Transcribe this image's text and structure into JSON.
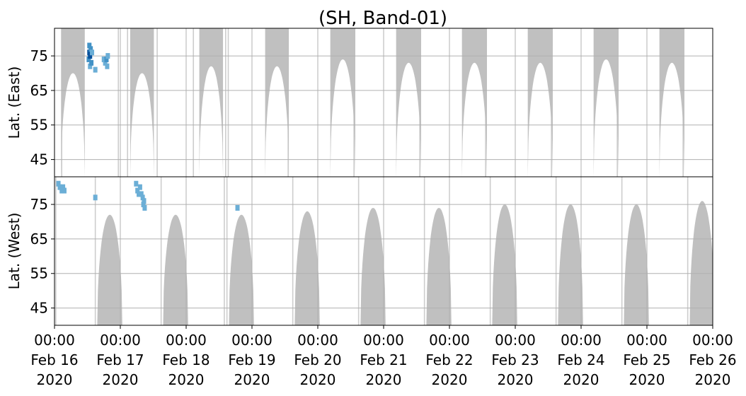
{
  "chart_data": {
    "type": "heatmap",
    "title": "(SH, Band-01)",
    "xlabel": "",
    "x_range": [
      "2020-02-16 00:00",
      "2020-02-26 00:00"
    ],
    "x_ticks": [
      {
        "time": "00:00",
        "date": "Feb 16",
        "year": "2020"
      },
      {
        "time": "00:00",
        "date": "Feb 17",
        "year": "2020"
      },
      {
        "time": "00:00",
        "date": "Feb 18",
        "year": "2020"
      },
      {
        "time": "00:00",
        "date": "Feb 19",
        "year": "2020"
      },
      {
        "time": "00:00",
        "date": "Feb 20",
        "year": "2020"
      },
      {
        "time": "00:00",
        "date": "Feb 21",
        "year": "2020"
      },
      {
        "time": "00:00",
        "date": "Feb 22",
        "year": "2020"
      },
      {
        "time": "00:00",
        "date": "Feb 23",
        "year": "2020"
      },
      {
        "time": "00:00",
        "date": "Feb 24",
        "year": "2020"
      },
      {
        "time": "00:00",
        "date": "Feb 25",
        "year": "2020"
      },
      {
        "time": "00:00",
        "date": "Feb 26",
        "year": "2020"
      }
    ],
    "grid": true,
    "colors": {
      "coverage": "#c0c0c0",
      "detection_light": "#6baed6",
      "detection_mid": "#4292c6",
      "detection_dark": "#08519c"
    },
    "panels": [
      {
        "name": "east",
        "ylabel": "Lat. (East)",
        "ylim": [
          40,
          83
        ],
        "yticks": [
          "45",
          "55",
          "65",
          "75"
        ],
        "coverage_lobes": [
          {
            "center_day": 0.28,
            "half_width_day": 0.18,
            "max_lat": 70,
            "edge": "top"
          },
          {
            "center_day": 1.33,
            "half_width_day": 0.18,
            "max_lat": 70,
            "edge": "top"
          },
          {
            "center_day": 2.38,
            "half_width_day": 0.18,
            "max_lat": 72,
            "edge": "top"
          },
          {
            "center_day": 3.38,
            "half_width_day": 0.18,
            "max_lat": 72,
            "edge": "top"
          },
          {
            "center_day": 4.38,
            "half_width_day": 0.19,
            "max_lat": 74,
            "edge": "top"
          },
          {
            "center_day": 5.38,
            "half_width_day": 0.19,
            "max_lat": 73,
            "edge": "top"
          },
          {
            "center_day": 6.38,
            "half_width_day": 0.19,
            "max_lat": 73,
            "edge": "top"
          },
          {
            "center_day": 7.38,
            "half_width_day": 0.19,
            "max_lat": 73,
            "edge": "top"
          },
          {
            "center_day": 8.38,
            "half_width_day": 0.19,
            "max_lat": 74,
            "edge": "top"
          },
          {
            "center_day": 9.38,
            "half_width_day": 0.19,
            "max_lat": 73,
            "edge": "top"
          }
        ],
        "coverage_streaks": [
          {
            "day": 0.97,
            "lat_min": 40,
            "lat_max": 83
          },
          {
            "day": 1.56,
            "lat_min": 40,
            "lat_max": 83
          },
          {
            "day": 2.6,
            "lat_min": 40,
            "lat_max": 83
          },
          {
            "day": 2.64,
            "lat_min": 40,
            "lat_max": 83
          },
          {
            "day": 3.55,
            "lat_min": 40,
            "lat_max": 83
          },
          {
            "day": 4.55,
            "lat_min": 40,
            "lat_max": 83
          },
          {
            "day": 5.55,
            "lat_min": 40,
            "lat_max": 83
          },
          {
            "day": 6.55,
            "lat_min": 40,
            "lat_max": 83
          },
          {
            "day": 7.55,
            "lat_min": 40,
            "lat_max": 83
          },
          {
            "day": 8.55,
            "lat_min": 40,
            "lat_max": 83
          },
          {
            "day": 9.55,
            "lat_min": 40,
            "lat_max": 83
          },
          {
            "day": 0.11,
            "lat_min": 40,
            "lat_max": 83
          },
          {
            "day": 1.11,
            "lat_min": 40,
            "lat_max": 83
          },
          {
            "day": 2.11,
            "lat_min": 40,
            "lat_max": 83
          }
        ],
        "detections": [
          {
            "day": 0.52,
            "lat": 74,
            "level": "mid"
          },
          {
            "day": 0.53,
            "lat": 76,
            "level": "dark"
          },
          {
            "day": 0.54,
            "lat": 75,
            "level": "dark"
          },
          {
            "day": 0.55,
            "lat": 77,
            "level": "mid"
          },
          {
            "day": 0.53,
            "lat": 78,
            "level": "mid"
          },
          {
            "day": 0.54,
            "lat": 72,
            "level": "light"
          },
          {
            "day": 0.56,
            "lat": 73,
            "level": "mid"
          },
          {
            "day": 0.57,
            "lat": 76,
            "level": "light"
          },
          {
            "day": 0.75,
            "lat": 74,
            "level": "light"
          },
          {
            "day": 0.77,
            "lat": 73,
            "level": "light"
          },
          {
            "day": 0.79,
            "lat": 74,
            "level": "mid"
          },
          {
            "day": 0.8,
            "lat": 72,
            "level": "light"
          },
          {
            "day": 0.81,
            "lat": 75,
            "level": "light"
          },
          {
            "day": 0.62,
            "lat": 71,
            "level": "light"
          }
        ]
      },
      {
        "name": "west",
        "ylabel": "Lat. (West)",
        "ylim": [
          40,
          83
        ],
        "y_inverted": true,
        "yticks": [
          "45",
          "55",
          "65",
          "75"
        ],
        "coverage_lobes": [
          {
            "center_day": 0.84,
            "half_width_day": 0.19,
            "max_lat": 72,
            "edge": "bottom"
          },
          {
            "center_day": 1.84,
            "half_width_day": 0.19,
            "max_lat": 72,
            "edge": "bottom"
          },
          {
            "center_day": 2.84,
            "half_width_day": 0.19,
            "max_lat": 72,
            "edge": "bottom"
          },
          {
            "center_day": 3.84,
            "half_width_day": 0.19,
            "max_lat": 73,
            "edge": "bottom"
          },
          {
            "center_day": 4.84,
            "half_width_day": 0.19,
            "max_lat": 74,
            "edge": "bottom"
          },
          {
            "center_day": 5.84,
            "half_width_day": 0.19,
            "max_lat": 74,
            "edge": "bottom"
          },
          {
            "center_day": 6.84,
            "half_width_day": 0.19,
            "max_lat": 75,
            "edge": "bottom"
          },
          {
            "center_day": 7.84,
            "half_width_day": 0.19,
            "max_lat": 75,
            "edge": "bottom"
          },
          {
            "center_day": 8.84,
            "half_width_day": 0.19,
            "max_lat": 75,
            "edge": "bottom"
          },
          {
            "center_day": 9.84,
            "half_width_day": 0.19,
            "max_lat": 76,
            "edge": "bottom"
          }
        ],
        "coverage_streaks": [
          {
            "day": 0.62,
            "lat_min": 40,
            "lat_max": 83
          },
          {
            "day": 1.62,
            "lat_min": 40,
            "lat_max": 83
          },
          {
            "day": 2.62,
            "lat_min": 40,
            "lat_max": 83
          },
          {
            "day": 2.58,
            "lat_min": 40,
            "lat_max": 83
          },
          {
            "day": 3.62,
            "lat_min": 40,
            "lat_max": 83
          },
          {
            "day": 4.62,
            "lat_min": 40,
            "lat_max": 83
          },
          {
            "day": 5.62,
            "lat_min": 40,
            "lat_max": 83
          },
          {
            "day": 6.62,
            "lat_min": 40,
            "lat_max": 83
          },
          {
            "day": 7.62,
            "lat_min": 40,
            "lat_max": 83
          },
          {
            "day": 8.62,
            "lat_min": 40,
            "lat_max": 83
          },
          {
            "day": 9.62,
            "lat_min": 40,
            "lat_max": 83
          },
          {
            "day": 0.02,
            "lat_min": 40,
            "lat_max": 83
          }
        ],
        "detections": [
          {
            "day": 0.06,
            "lat": 81,
            "level": "light"
          },
          {
            "day": 0.08,
            "lat": 80,
            "level": "light"
          },
          {
            "day": 0.11,
            "lat": 79,
            "level": "light"
          },
          {
            "day": 0.13,
            "lat": 80,
            "level": "light"
          },
          {
            "day": 0.15,
            "lat": 79,
            "level": "light"
          },
          {
            "day": 0.62,
            "lat": 77,
            "level": "light"
          },
          {
            "day": 1.24,
            "lat": 81,
            "level": "light"
          },
          {
            "day": 1.26,
            "lat": 79,
            "level": "light"
          },
          {
            "day": 1.28,
            "lat": 78,
            "level": "light"
          },
          {
            "day": 1.3,
            "lat": 80,
            "level": "light"
          },
          {
            "day": 1.32,
            "lat": 78,
            "level": "light"
          },
          {
            "day": 1.34,
            "lat": 77,
            "level": "light"
          },
          {
            "day": 1.35,
            "lat": 75,
            "level": "light"
          },
          {
            "day": 1.36,
            "lat": 76,
            "level": "light"
          },
          {
            "day": 1.37,
            "lat": 74,
            "level": "light"
          },
          {
            "day": 2.78,
            "lat": 74,
            "level": "light"
          }
        ]
      }
    ]
  }
}
